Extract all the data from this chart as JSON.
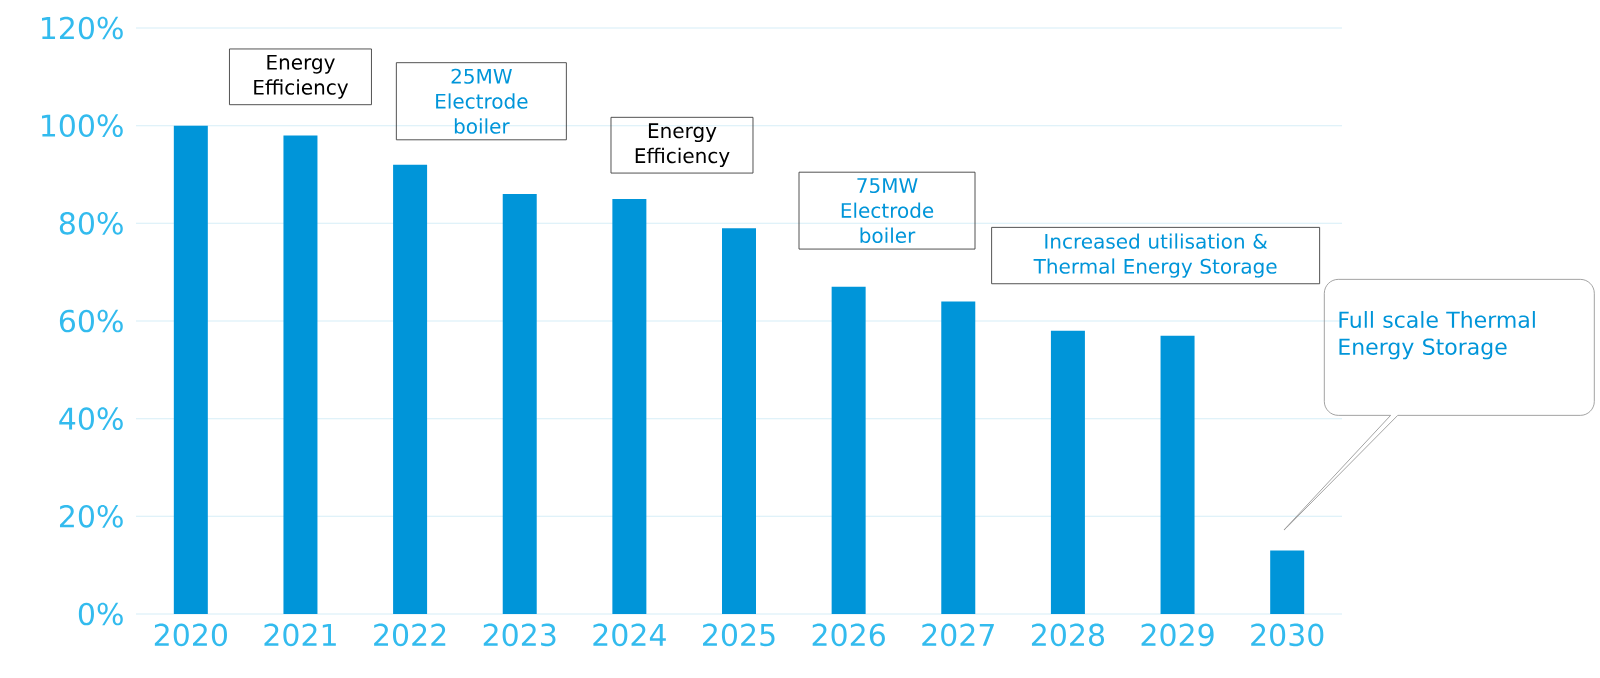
{
  "chart_data": {
    "type": "bar",
    "categories": [
      "2020",
      "2021",
      "2022",
      "2023",
      "2024",
      "2025",
      "2026",
      "2027",
      "2028",
      "2029",
      "2030"
    ],
    "values": [
      100,
      98,
      92,
      86,
      85,
      79,
      67,
      64,
      58,
      57,
      13
    ],
    "color": "#0095d9",
    "ylim": [
      0,
      120
    ],
    "yticks": [
      {
        "value": 0,
        "label": "0%"
      },
      {
        "value": 20,
        "label": "20%"
      },
      {
        "value": 40,
        "label": "40%"
      },
      {
        "value": 60,
        "label": "60%"
      },
      {
        "value": 80,
        "label": "80%"
      },
      {
        "value": 100,
        "label": "100%"
      },
      {
        "value": 120,
        "label": "120%"
      }
    ],
    "grid": "y",
    "annotations": [
      "Energy Efficiency",
      "25MW Electrode boiler",
      "Energy Efficiency",
      "75MW Electrode boiler",
      "Increased utilisation & Thermal Energy Storage",
      "Full scale Thermal Energy Storage"
    ]
  }
}
